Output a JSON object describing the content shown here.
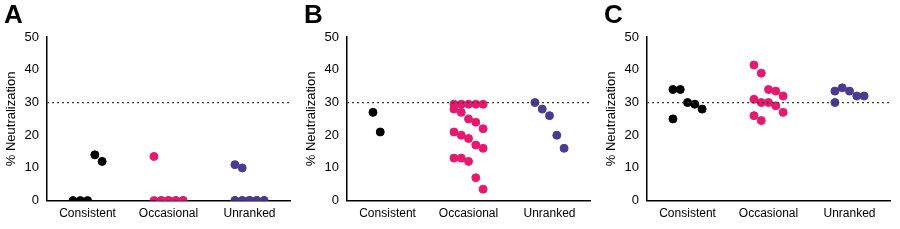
{
  "chart_data": [
    {
      "type": "scatter",
      "title": "A",
      "y_label": "% Neutralization",
      "categories": [
        "Consistent",
        "Occasional",
        "Unranked"
      ],
      "colors": [
        "#000000",
        "#e6196e",
        "#4b3a8f"
      ],
      "values": [
        [
          0,
          0,
          0,
          14,
          12
        ],
        [
          13.5,
          0,
          0,
          0,
          0,
          0,
          0,
          0,
          0,
          0
        ],
        [
          11,
          10,
          0,
          0,
          0,
          0,
          0,
          0,
          0,
          0,
          0,
          0,
          0,
          0
        ]
      ],
      "ylim": [
        0,
        50
      ],
      "yticks": [
        0,
        10,
        20,
        30,
        40,
        50
      ],
      "grid": false,
      "threshold": {
        "value": 30,
        "line_style": "dotted"
      }
    },
    {
      "type": "scatter",
      "title": "B",
      "y_label": "% Neutralization",
      "categories": [
        "Consistent",
        "Occasional",
        "Unranked"
      ],
      "colors": [
        "#000000",
        "#e6196e",
        "#4b3a8f"
      ],
      "values": [
        [
          27,
          21
        ],
        [
          29.5,
          29.5,
          29.5,
          29.5,
          29.5,
          28,
          27,
          25,
          24,
          22,
          21,
          20,
          19,
          17,
          16,
          13,
          13,
          12,
          7,
          3.5
        ],
        [
          30,
          28,
          26,
          20,
          16
        ]
      ],
      "ylim": [
        0,
        50
      ],
      "yticks": [
        0,
        10,
        20,
        30,
        40,
        50
      ],
      "grid": false,
      "threshold": {
        "value": 30,
        "line_style": "dotted"
      }
    },
    {
      "type": "scatter",
      "title": "C",
      "y_label": "% Neutralization",
      "categories": [
        "Consistent",
        "Occasional",
        "Unranked"
      ],
      "colors": [
        "#000000",
        "#e6196e",
        "#4b3a8f"
      ],
      "values": [
        [
          34,
          34,
          30,
          29.5,
          28,
          25
        ],
        [
          41.5,
          39,
          34,
          33.5,
          32,
          31,
          30,
          30,
          29,
          27,
          26,
          24.5
        ],
        [
          33.5,
          34.5,
          33.5,
          32,
          32,
          30
        ]
      ],
      "ylim": [
        0,
        50
      ],
      "yticks": [
        0,
        10,
        20,
        30,
        40,
        50
      ],
      "grid": false,
      "threshold": {
        "value": 30,
        "line_style": "dotted"
      }
    }
  ]
}
